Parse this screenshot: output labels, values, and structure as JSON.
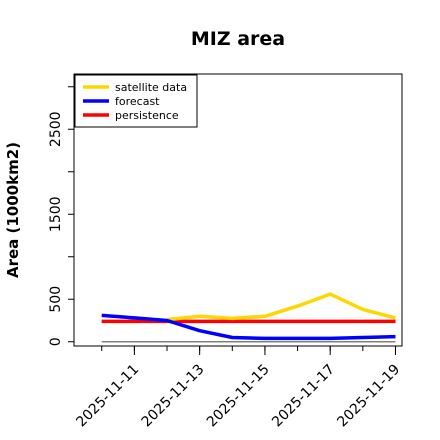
{
  "chart_data": {
    "type": "line",
    "title": "MIZ area",
    "xlabel": "",
    "ylabel": "Area (1000km2)",
    "x": [
      "2025-11-10",
      "2025-11-11",
      "2025-11-12",
      "2025-11-13",
      "2025-11-14",
      "2025-11-15",
      "2025-11-16",
      "2025-11-17",
      "2025-11-18",
      "2025-11-19"
    ],
    "x_tick_labels": [
      {
        "label": "2025-11-11",
        "color": "#228B22"
      },
      {
        "label": "2025-11-13",
        "color": "#000000"
      },
      {
        "label": "2025-11-15",
        "color": "#000000"
      },
      {
        "label": "2025-11-17",
        "color": "#000000"
      },
      {
        "label": "2025-11-19",
        "color": "#000000"
      }
    ],
    "y_ticks": [
      0,
      500,
      1500,
      2500
    ],
    "y_minor_ticks": [
      1000,
      2000,
      3000
    ],
    "ylim": [
      -50,
      3150
    ],
    "grid": false,
    "legend_position": "top-left",
    "series": [
      {
        "name": "satellite data",
        "color": "#FFD700",
        "x": [
          "2025-11-12",
          "2025-11-13",
          "2025-11-14",
          "2025-11-15",
          "2025-11-16",
          "2025-11-17",
          "2025-11-18",
          "2025-11-19"
        ],
        "values": [
          260,
          300,
          275,
          300,
          420,
          560,
          380,
          280
        ]
      },
      {
        "name": "forecast",
        "color": "#0000FF",
        "x": [
          "2025-11-10",
          "2025-11-11",
          "2025-11-12",
          "2025-11-13",
          "2025-11-14",
          "2025-11-15",
          "2025-11-16",
          "2025-11-17",
          "2025-11-18",
          "2025-11-19"
        ],
        "values": [
          310,
          280,
          250,
          130,
          50,
          40,
          40,
          40,
          50,
          60
        ]
      },
      {
        "name": "persistence",
        "color": "#FF0000",
        "x": [
          "2025-11-10",
          "2025-11-19"
        ],
        "values": [
          240,
          240
        ]
      }
    ],
    "reference_line": {
      "color": "#808080",
      "x": [
        "2025-11-10",
        "2025-11-19"
      ],
      "values": [
        0,
        0
      ]
    }
  }
}
